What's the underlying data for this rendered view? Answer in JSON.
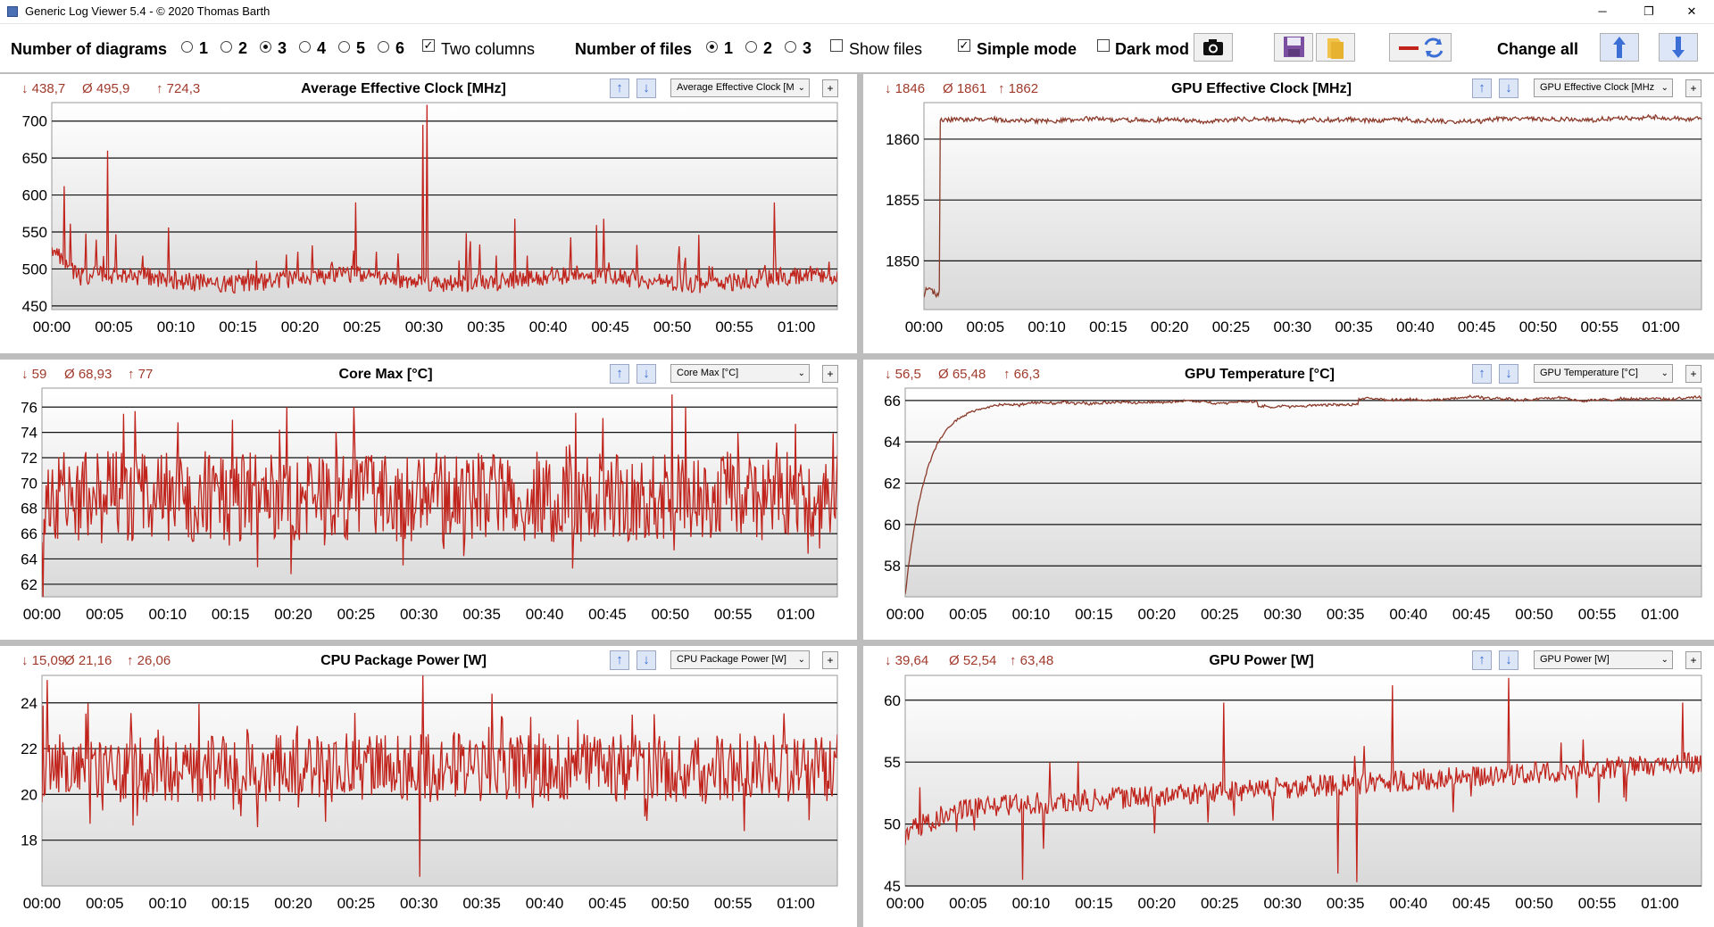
{
  "window": {
    "title": "Generic Log Viewer 5.4 - © 2020 Thomas Barth",
    "minimize": "─",
    "restore": "❐",
    "close": "✕"
  },
  "toolbar": {
    "num_diagrams_label": "Number of diagrams",
    "diagram_options": [
      "1",
      "2",
      "3",
      "4",
      "5",
      "6"
    ],
    "diagram_selected": "3",
    "two_columns_label": "Two columns",
    "two_columns_checked": true,
    "num_files_label": "Number of files",
    "file_options": [
      "1",
      "2",
      "3"
    ],
    "file_selected": "1",
    "show_files_label": "Show files",
    "show_files_checked": false,
    "simple_mode_label": "Simple mode",
    "simple_mode_checked": true,
    "dark_mode_label": "Dark mod",
    "dark_mode_checked": false,
    "change_all_label": "Change all",
    "icons": [
      "camera-icon",
      "save-icon",
      "folder-icon",
      "line-swap-icon",
      "arrow-up-icon",
      "arrow-down-icon"
    ]
  },
  "colors": {
    "series": "#c0241c",
    "series_dark": "#8b3a2a",
    "stats": "#a03a2c",
    "arrow": "#3b6fd6"
  },
  "chart_data": [
    {
      "type": "line",
      "title": "Average Effective Clock [MHz]",
      "dropdown": "Average Effective Clock [M",
      "stats": {
        "min": "↓ 438,7",
        "avg": "Ø 495,9",
        "max": "↑ 724,3"
      },
      "xticks": [
        "00:00",
        "00:05",
        "00:10",
        "00:15",
        "00:20",
        "00:25",
        "00:30",
        "00:35",
        "00:40",
        "00:45",
        "00:50",
        "00:55",
        "01:00"
      ],
      "xlim": [
        0,
        63.3
      ],
      "ylim": [
        445,
        725
      ],
      "yticks": [
        700,
        650,
        600,
        550,
        500,
        450
      ],
      "ylabels": [
        "700",
        "650",
        "600",
        "550",
        "500",
        "450"
      ],
      "min": 438.7,
      "avg": 495.9,
      "max": 724.3,
      "spikes": [
        [
          4.5,
          660
        ],
        [
          30.2,
          722
        ],
        [
          29.9,
          695
        ],
        [
          24.5,
          590
        ],
        [
          58.2,
          590
        ],
        [
          1.0,
          612
        ],
        [
          37.3,
          568
        ],
        [
          44.5,
          568
        ]
      ],
      "seed": 11,
      "noise": 28,
      "style": "spiky"
    },
    {
      "type": "line",
      "title": "Core Max [°C]",
      "dropdown": "Core Max [°C]",
      "stats": {
        "min": "↓ 59",
        "avg": "Ø 68,93",
        "max": "↑ 77"
      },
      "xticks": [
        "00:00",
        "00:05",
        "00:10",
        "00:15",
        "00:20",
        "00:25",
        "00:30",
        "00:35",
        "00:40",
        "00:45",
        "00:50",
        "00:55",
        "01:00"
      ],
      "xlim": [
        0,
        63.3
      ],
      "ylim": [
        61,
        77.5
      ],
      "yticks": [
        76,
        74,
        72,
        70,
        68,
        66,
        64,
        62
      ],
      "ylabels": [
        "76",
        "74",
        "72",
        "70",
        "68",
        "66",
        "64",
        "62"
      ],
      "min": 59,
      "avg": 68.93,
      "max": 77,
      "spikes": [
        [
          0.1,
          61
        ],
        [
          50.1,
          77
        ],
        [
          24.8,
          76
        ],
        [
          19.5,
          76
        ],
        [
          15.2,
          75
        ],
        [
          51.2,
          76
        ]
      ],
      "seed": 23,
      "noise": 3.6,
      "style": "dense"
    },
    {
      "type": "line",
      "title": "CPU Package Power [W]",
      "dropdown": "CPU Package Power [W]",
      "stats": {
        "min": "↓ 15,09",
        "avg": "Ø 21,16",
        "max": "↑ 26,06"
      },
      "xticks": [
        "00:00",
        "00:05",
        "00:10",
        "00:15",
        "00:20",
        "00:25",
        "00:30",
        "00:35",
        "00:40",
        "00:45",
        "00:50",
        "00:55",
        "01:00"
      ],
      "xlim": [
        0,
        63.3
      ],
      "ylim": [
        16,
        25.2
      ],
      "yticks": [
        24,
        22,
        20,
        18
      ],
      "ylabels": [
        "24",
        "22",
        "20",
        "18"
      ],
      "min": 15.09,
      "avg": 21.16,
      "max": 26.06,
      "spikes": [
        [
          30.3,
          25.2
        ],
        [
          0.4,
          25.0
        ],
        [
          35.8,
          24.4
        ],
        [
          30.1,
          16.4
        ]
      ],
      "seed": 37,
      "noise": 1.5,
      "style": "dense"
    },
    {
      "type": "line",
      "title": "GPU Effective Clock [MHz]",
      "dropdown": "GPU Effective Clock [MHz",
      "stats": {
        "min": "↓ 1846",
        "avg": "Ø 1861",
        "max": "↑ 1862"
      },
      "xticks": [
        "00:00",
        "00:05",
        "00:10",
        "00:15",
        "00:20",
        "00:25",
        "00:30",
        "00:35",
        "00:40",
        "00:45",
        "00:50",
        "00:55",
        "01:00"
      ],
      "xlim": [
        0,
        63.3
      ],
      "ylim": [
        1846,
        1863
      ],
      "yticks": [
        1860,
        1855,
        1850
      ],
      "ylabels": [
        "1860",
        "1855",
        "1850"
      ],
      "min": 1846,
      "avg": 1861,
      "max": 1862,
      "spikes": [],
      "seed": 41,
      "noise": 0.35,
      "style": "flat",
      "start_value": 1847,
      "ramp_end": 1.3,
      "level": 1861.6
    },
    {
      "type": "line",
      "title": "GPU Temperature [°C]",
      "dropdown": "GPU Temperature [°C]",
      "stats": {
        "min": "↓ 56,5",
        "avg": "Ø 65,48",
        "max": "↑ 66,3"
      },
      "xticks": [
        "00:00",
        "00:05",
        "00:10",
        "00:15",
        "00:20",
        "00:25",
        "00:30",
        "00:35",
        "00:40",
        "00:45",
        "00:50",
        "00:55",
        "01:00"
      ],
      "xlim": [
        0,
        63.3
      ],
      "ylim": [
        56.5,
        66.6
      ],
      "yticks": [
        66,
        64,
        62,
        60,
        58
      ],
      "ylabels": [
        "66",
        "64",
        "62",
        "60",
        "58"
      ],
      "min": 56.5,
      "avg": 65.48,
      "max": 66.3,
      "spikes": [],
      "seed": 53,
      "noise": 0.12,
      "style": "curve",
      "start_value": 56.6,
      "level": 65.8
    },
    {
      "type": "line",
      "title": "GPU Power [W]",
      "dropdown": "GPU Power [W]",
      "stats": {
        "min": "↓ 39,64",
        "avg": "Ø 52,54",
        "max": "↑ 63,48"
      },
      "xticks": [
        "00:00",
        "00:05",
        "00:10",
        "00:15",
        "00:20",
        "00:25",
        "00:30",
        "00:35",
        "00:40",
        "00:45",
        "00:50",
        "00:55",
        "01:00"
      ],
      "xlim": [
        0,
        63.3
      ],
      "ylim": [
        45,
        62
      ],
      "yticks": [
        60,
        55,
        50,
        45
      ],
      "ylabels": [
        "60",
        "55",
        "50",
        "45"
      ],
      "min": 39.64,
      "avg": 52.54,
      "max": 63.48,
      "spikes": [
        [
          48.0,
          61.8
        ],
        [
          38.7,
          61.2
        ],
        [
          25.3,
          59.8
        ],
        [
          61.8,
          59.8
        ],
        [
          9.3,
          45.5
        ],
        [
          35.9,
          45.3
        ],
        [
          34.4,
          46.0
        ],
        [
          11.0,
          48.0
        ]
      ],
      "seed": 67,
      "noise": 0.9,
      "style": "rising",
      "start_value": 50,
      "level": 54
    }
  ]
}
